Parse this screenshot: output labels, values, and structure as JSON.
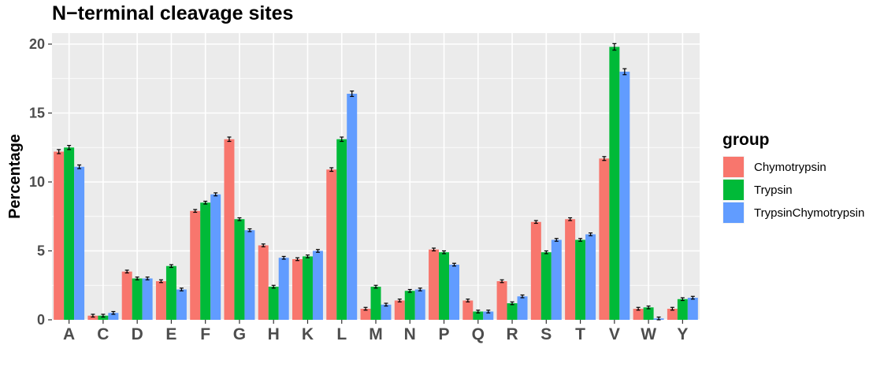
{
  "chart_data": {
    "type": "bar",
    "title": "N−terminal cleavage sites",
    "xlabel": "",
    "ylabel": "Percentage",
    "ylim": [
      0,
      20.8
    ],
    "yticks": [
      0,
      5,
      10,
      15,
      20
    ],
    "grid": true,
    "legend_title": "group",
    "legend_position": "right",
    "categories": [
      "A",
      "C",
      "D",
      "E",
      "F",
      "G",
      "H",
      "K",
      "L",
      "M",
      "N",
      "P",
      "Q",
      "R",
      "S",
      "T",
      "V",
      "W",
      "Y"
    ],
    "series": [
      {
        "name": "Chymotrypsin",
        "color": "#F8766D",
        "values": [
          12.2,
          0.3,
          3.5,
          2.8,
          7.9,
          13.1,
          5.4,
          4.4,
          10.9,
          0.8,
          1.4,
          5.1,
          1.4,
          2.8,
          7.1,
          7.3,
          11.7,
          0.8,
          0.8
        ]
      },
      {
        "name": "Trypsin",
        "color": "#00BA38",
        "values": [
          12.5,
          0.3,
          3.0,
          3.9,
          8.5,
          7.3,
          2.4,
          4.6,
          13.1,
          2.4,
          2.1,
          4.9,
          0.6,
          1.2,
          4.9,
          5.8,
          19.8,
          0.9,
          1.5
        ]
      },
      {
        "name": "TrypsinChymotrypsin",
        "color": "#619CFF",
        "values": [
          11.1,
          0.5,
          3.0,
          2.2,
          9.1,
          6.5,
          4.5,
          5.0,
          16.4,
          1.1,
          2.2,
          4.0,
          0.6,
          1.7,
          5.8,
          6.2,
          18.0,
          0.1,
          1.6
        ]
      }
    ]
  }
}
